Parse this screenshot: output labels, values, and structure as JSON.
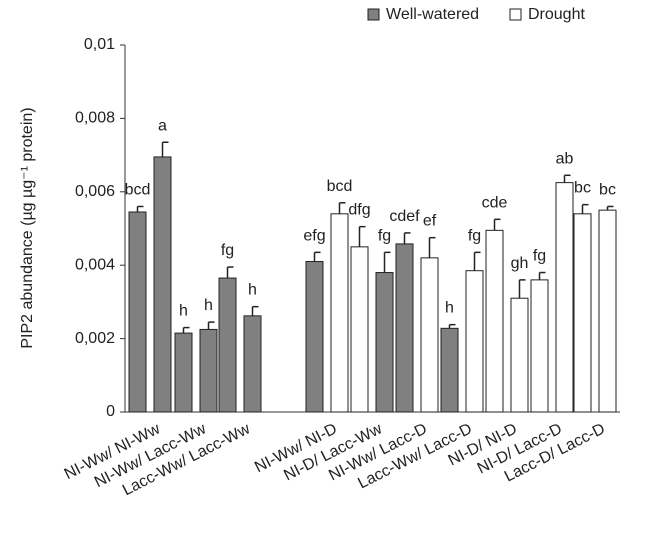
{
  "chart_data": {
    "type": "bar",
    "y_label": "PIP2 abundance (µg µg⁻¹ protein)",
    "categories": [
      "NI-Ww/ NI-Ww",
      "NI-Ww/ Lacc-Ww",
      "Lacc-Ww/ Lacc-Ww",
      "NI-Ww/ NI-D",
      "NI-D/ Lacc-Ww",
      "NI-Ww/ Lacc-D",
      "Lacc-Ww/ Lacc-D",
      "NI-D/ NI-D",
      "NI-D/ Lacc-D",
      "Lacc-D/ Lacc-D"
    ],
    "values": [
      [
        0.00545,
        0.00695
      ],
      [
        0.00215,
        0.00225
      ],
      [
        0.00365,
        0.00262
      ],
      [
        0.0041,
        0.0054
      ],
      [
        0.0045,
        0.0038
      ],
      [
        0.00458,
        0.0042
      ],
      [
        0.00228,
        0.00385
      ],
      [
        0.00495,
        0.0031
      ],
      [
        0.0036,
        0.00625
      ],
      [
        0.0054,
        0.0055
      ]
    ],
    "errors": [
      [
        0.00015,
        0.0004
      ],
      [
        0.00015,
        0.0002
      ],
      [
        0.0003,
        0.00025
      ],
      [
        0.00025,
        0.0003
      ],
      [
        0.00055,
        0.00055
      ],
      [
        0.0003,
        0.00055
      ],
      [
        0.0001,
        0.0005
      ],
      [
        0.0003,
        0.0005
      ],
      [
        0.0002,
        0.0002
      ],
      [
        0.00025,
        0.0001
      ]
    ],
    "letters": [
      [
        "bcd",
        "a"
      ],
      [
        "h",
        "h"
      ],
      [
        "fg",
        "h"
      ],
      [
        "efg",
        "bcd"
      ],
      [
        "dfg",
        "fg"
      ],
      [
        "cdef",
        "ef"
      ],
      [
        "h",
        "fg"
      ],
      [
        "cde",
        "gh"
      ],
      [
        "fg",
        "ab"
      ],
      [
        "bc",
        "bc"
      ]
    ],
    "colors": [
      [
        "#808080",
        "#808080"
      ],
      [
        "#808080",
        "#808080"
      ],
      [
        "#808080",
        "#808080"
      ],
      [
        "#808080",
        "#ffffff"
      ],
      [
        "#ffffff",
        "#808080"
      ],
      [
        "#808080",
        "#ffffff"
      ],
      [
        "#808080",
        "#ffffff"
      ],
      [
        "#ffffff",
        "#ffffff"
      ],
      [
        "#ffffff",
        "#ffffff"
      ],
      [
        "#ffffff",
        "#ffffff"
      ]
    ],
    "legend": [
      {
        "name": "Well-watered",
        "color": "#808080"
      },
      {
        "name": "Drought",
        "color": "#ffffff"
      }
    ],
    "ylim": [
      0,
      0.01
    ],
    "yticks": [
      0,
      {
        "value": 0.002,
        "label": "0,002"
      },
      {
        "value": 0.004,
        "label": "0,004"
      },
      {
        "value": 0.006,
        "label": "0,006"
      },
      {
        "value": 0.008,
        "label": "0,008"
      },
      {
        "value": 0.01,
        "label": "0,01"
      }
    ]
  }
}
